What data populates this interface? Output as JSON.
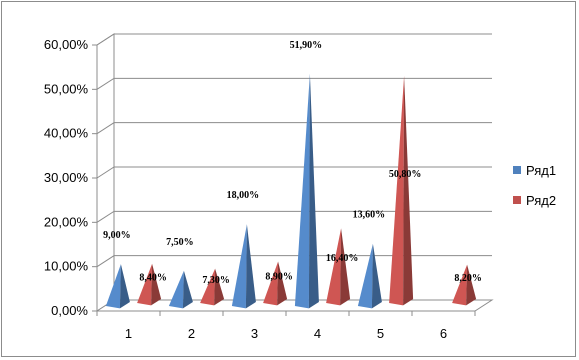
{
  "chart_data": {
    "type": "bar",
    "bar_shape": "pyramid",
    "categories": [
      "1",
      "2",
      "3",
      "4",
      "5",
      "6"
    ],
    "series": [
      {
        "name": "Ряд1",
        "color": "#4f81bd",
        "values": [
          9.0,
          7.5,
          18.0,
          51.9,
          13.6,
          null
        ],
        "labels": [
          "9,00%",
          "7,50%",
          "18,00%",
          "51,90%",
          "13,60%",
          ""
        ]
      },
      {
        "name": "Ряд2",
        "color": "#c0504d",
        "values": [
          8.4,
          7.3,
          8.9,
          16.4,
          50.8,
          8.2
        ],
        "labels": [
          "8,40%",
          "7,30%",
          "8,90%",
          "16,40%",
          "50,80%",
          "8,20%"
        ]
      }
    ],
    "y_ticks": [
      "0,00%",
      "10,00%",
      "20,00%",
      "30,00%",
      "40,00%",
      "50,00%",
      "60,00%"
    ],
    "ylim": [
      0,
      60
    ],
    "grid": true,
    "legend_position": "right"
  }
}
